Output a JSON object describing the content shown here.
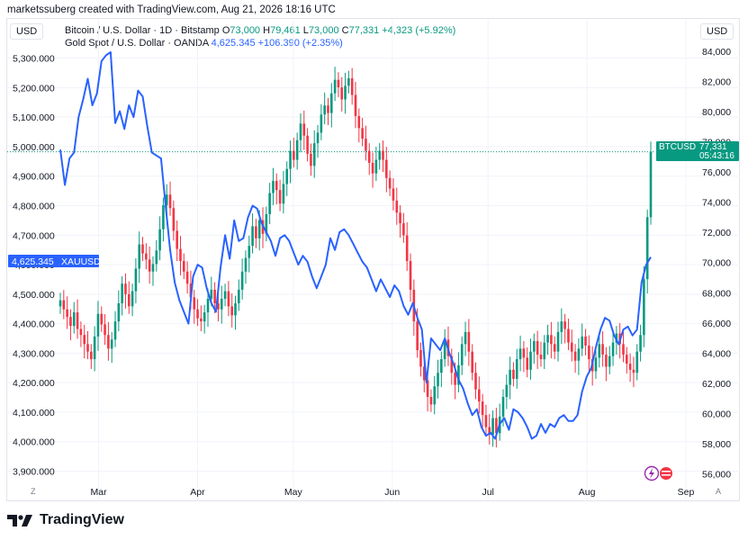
{
  "header": {
    "attribution": "marketssuberg created with TradingView.com, Aug 21, 2026 18:16 UTC"
  },
  "scale_badges": {
    "left": "USD",
    "right": "USD"
  },
  "legend": {
    "btc": {
      "name": "Bitcoin / U.S. Dollar · 1D · Bitstamp",
      "o_label": "O",
      "o": "73,000",
      "h_label": "H",
      "h": "79,461",
      "l_label": "L",
      "l": "73,000",
      "c_label": "C",
      "c": "77,331",
      "change": "+4,323 (+5.92%)"
    },
    "gold": {
      "name": "Gold Spot / U.S. Dollar · OANDA",
      "price": "4,625.345",
      "change": "+106.390 (+2.35%)"
    }
  },
  "tags": {
    "xau_value": "4,625.345",
    "xau_label": "XAUUSD",
    "btc_label": "BTCUSD",
    "btc_value": "77,331",
    "btc_countdown": "05:43:16"
  },
  "corners": {
    "left": "Z",
    "right": "A"
  },
  "branding": {
    "logo_text": "TradingView"
  },
  "colors": {
    "up": "#089981",
    "down": "#f23645",
    "gold_line": "#2962ff",
    "grid": "#f0f3fa"
  },
  "chart_data": {
    "type": "line",
    "x_labels": [
      "Mar",
      "Apr",
      "May",
      "Jun",
      "Jul",
      "Aug",
      "Sep"
    ],
    "left_axis": {
      "label": "USD",
      "ticks": [
        "5,300.000",
        "5,200.000",
        "5,100.000",
        "5,000.000",
        "4,900.000",
        "4,800.000",
        "4,700.000",
        "4,600.000",
        "4,500.000",
        "4,400.000",
        "4,300.000",
        "4,200.000",
        "4,100.000",
        "4,000.000",
        "3,900.000"
      ],
      "range": [
        3865,
        5375
      ]
    },
    "right_axis": {
      "label": "USD",
      "ticks": [
        "84,000",
        "82,000",
        "80,000",
        "78,000",
        "76,000",
        "74,000",
        "72,000",
        "70,000",
        "68,000",
        "66,000",
        "64,000",
        "62,000",
        "60,000",
        "58,000",
        "56,000"
      ],
      "range": [
        55500,
        85000
      ]
    },
    "series": [
      {
        "name": "Bitcoin / U.S. Dollar · 1D · Bitstamp",
        "kind": "candlestick",
        "axis": "right",
        "closes": [
          67500,
          66900,
          66400,
          65800,
          66700,
          65600,
          65200,
          64600,
          64100,
          63600,
          65100,
          66600,
          65900,
          65200,
          64300,
          64900,
          66100,
          67300,
          68600,
          67900,
          67100,
          68100,
          69600,
          71200,
          70600,
          70200,
          69400,
          69900,
          70800,
          72200,
          73800,
          74500,
          73600,
          72100,
          70900,
          70100,
          69400,
          68600,
          67700,
          66900,
          66300,
          66100,
          66700,
          67600,
          68200,
          67300,
          66900,
          67600,
          68100,
          67100,
          66500,
          67300,
          68200,
          69400,
          70300,
          71100,
          72400,
          71600,
          72800,
          71900,
          73200,
          74600,
          75400,
          74800,
          73900,
          75200,
          76200,
          77400,
          76800,
          78100,
          79200,
          78400,
          77200,
          76400,
          77900,
          78600,
          79800,
          80400,
          79900,
          81200,
          82100,
          81600,
          80800,
          81700,
          82200,
          81100,
          79700,
          78900,
          78200,
          77400,
          76600,
          75900,
          76800,
          77400,
          76800,
          75600,
          74900,
          74100,
          73300,
          72600,
          71800,
          70100,
          68200,
          66100,
          64200,
          63100,
          62200,
          61100,
          60600,
          61800,
          62700,
          63600,
          64900,
          63800,
          62700,
          61900,
          63200,
          64600,
          65400,
          64100,
          62700,
          61600,
          60800,
          59900,
          59100,
          58600,
          59700,
          58700,
          59800,
          61100,
          61900,
          62900,
          62300,
          63600,
          64300,
          63700,
          62900,
          64100,
          64800,
          63900,
          63600,
          64700,
          65200,
          64600,
          64100,
          65400,
          66100,
          65600,
          64700,
          64100,
          63500,
          64300,
          65100,
          64500,
          63600,
          62800,
          63700,
          64600,
          63900,
          63100,
          63800,
          64700,
          65300,
          64600,
          63900,
          63300,
          62900,
          62700,
          64100,
          65200,
          68900,
          73000,
          77331
        ]
      },
      {
        "name": "Gold Spot / U.S. Dollar · OANDA",
        "kind": "line",
        "axis": "left",
        "points": [
          4990,
          4870,
          4960,
          4980,
          5100,
          5160,
          5230,
          5140,
          5180,
          5290,
          5310,
          5320,
          5080,
          5120,
          5060,
          5140,
          5100,
          5190,
          5170,
          5070,
          4980,
          4970,
          4960,
          4800,
          4650,
          4540,
          4480,
          4440,
          4400,
          4560,
          4600,
          4590,
          4520,
          4470,
          4440,
          4590,
          4700,
          4620,
          4750,
          4680,
          4690,
          4760,
          4800,
          4790,
          4740,
          4710,
          4680,
          4630,
          4690,
          4700,
          4680,
          4640,
          4600,
          4630,
          4610,
          4560,
          4520,
          4560,
          4600,
          4690,
          4650,
          4710,
          4720,
          4700,
          4670,
          4640,
          4610,
          4590,
          4550,
          4510,
          4550,
          4520,
          4490,
          4530,
          4510,
          4460,
          4430,
          4470,
          4420,
          4380,
          4200,
          4350,
          4330,
          4310,
          4350,
          4300,
          4260,
          4210,
          4180,
          4130,
          4090,
          4110,
          4050,
          4020,
          4030,
          4010,
          4060,
          4080,
          4040,
          4110,
          4100,
          4080,
          4050,
          4010,
          4020,
          4060,
          4030,
          4060,
          4050,
          4080,
          4090,
          4070,
          4070,
          4090,
          4170,
          4220,
          4250,
          4320,
          4380,
          4420,
          4410,
          4360,
          4330,
          4380,
          4390,
          4360,
          4380,
          4540,
          4600,
          4625.345
        ]
      }
    ]
  }
}
